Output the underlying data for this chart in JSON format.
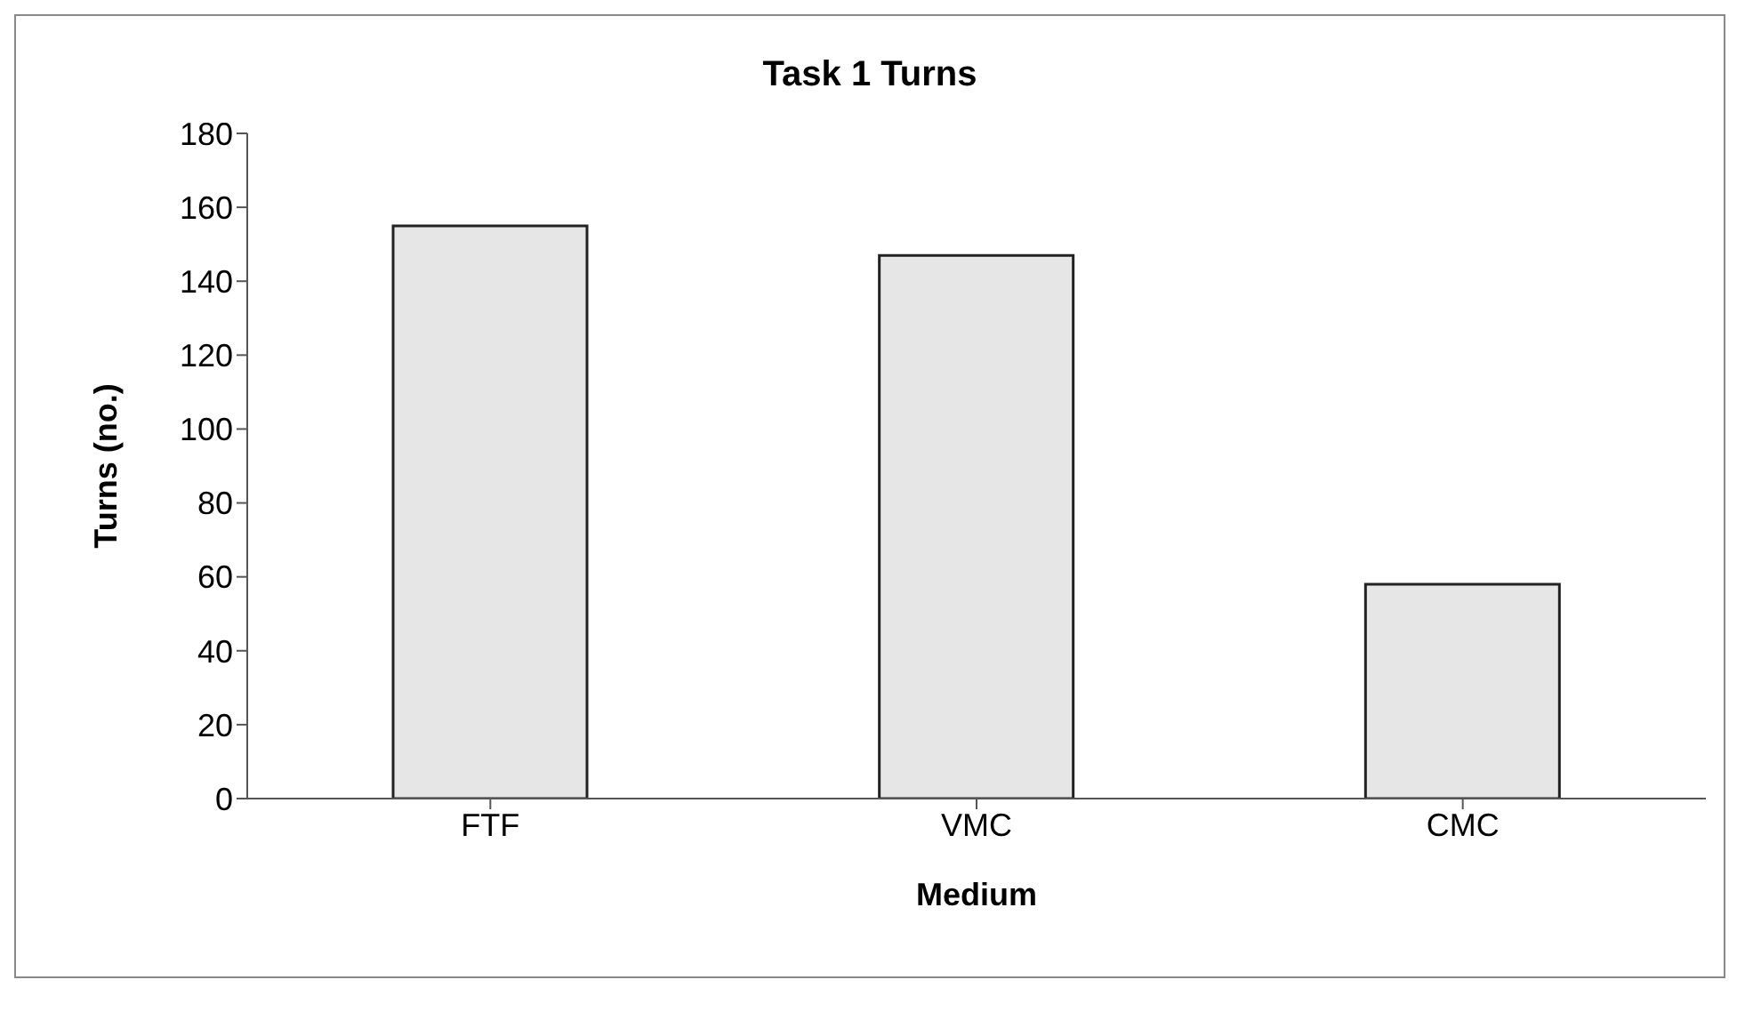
{
  "chart_data": {
    "type": "bar",
    "title": "Task 1 Turns",
    "xlabel": "Medium",
    "ylabel": "Turns (no.)",
    "categories": [
      "FTF",
      "VMC",
      "CMC"
    ],
    "values": [
      155,
      147,
      58
    ],
    "color": "#e6e6e6",
    "ylim": [
      0,
      180
    ],
    "yticks": [
      0,
      20,
      40,
      60,
      80,
      100,
      120,
      140,
      160,
      180
    ],
    "grid": false,
    "legend": false
  }
}
